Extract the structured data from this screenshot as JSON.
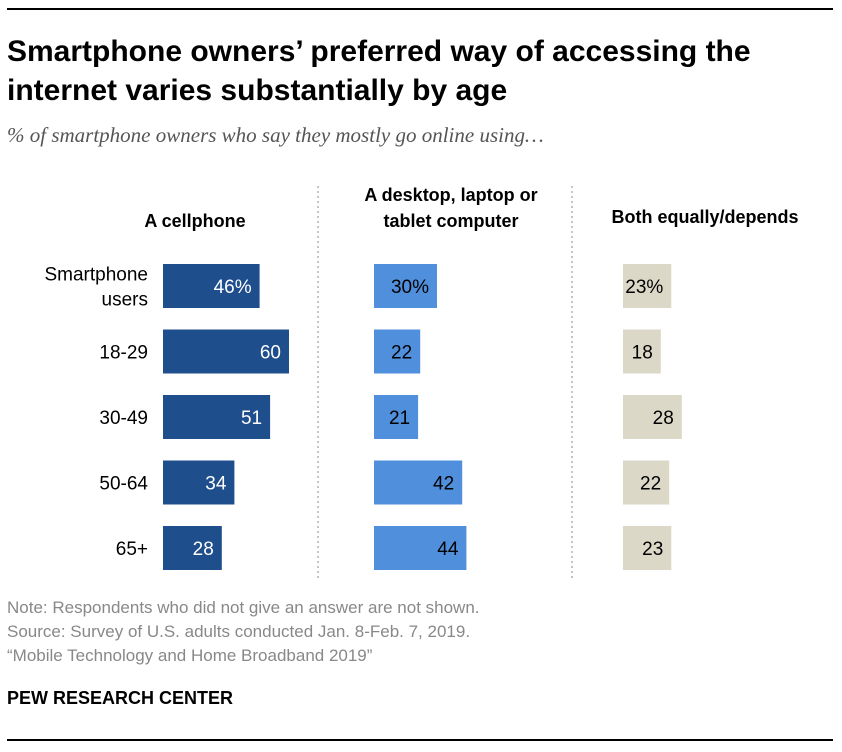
{
  "title": "Smartphone owners’ preferred way of accessing the internet varies substantially by age",
  "subtitle": "% of smartphone owners who say they mostly go online using…",
  "chart_data": {
    "type": "bar",
    "orientation": "horizontal",
    "categories": [
      "Smartphone users",
      "18-29",
      "30-49",
      "50-64",
      "65+"
    ],
    "category_lines": [
      [
        "Smartphone",
        "users"
      ],
      [
        "18-29"
      ],
      [
        "30-49"
      ],
      [
        "50-64"
      ],
      [
        "65+"
      ]
    ],
    "series": [
      {
        "name": "A cellphone",
        "name_lines": [
          "A cellphone"
        ],
        "color": "#1f4e8c",
        "label_color": "#ffffff",
        "value_labels": [
          "46%",
          "60",
          "51",
          "34",
          "28"
        ],
        "values": [
          46,
          60,
          51,
          34,
          28
        ]
      },
      {
        "name": "A desktop, laptop or tablet computer",
        "name_lines": [
          "A desktop, laptop or",
          "tablet computer"
        ],
        "color": "#4f8fdc",
        "label_color": "#000000",
        "value_labels": [
          "30%",
          "22",
          "21",
          "42",
          "44"
        ],
        "values": [
          30,
          22,
          21,
          42,
          44
        ]
      },
      {
        "name": "Both equally/depends",
        "name_lines": [
          "Both equally/depends"
        ],
        "color": "#dbd8c8",
        "label_color": "#000000",
        "value_labels": [
          "23%",
          "18",
          "28",
          "22",
          "23"
        ],
        "values": [
          23,
          18,
          28,
          22,
          23
        ]
      }
    ]
  },
  "notes": [
    "Note: Respondents who did not give an answer are not shown.",
    "Source: Survey of U.S. adults conducted Jan. 8-Feb. 7, 2019.",
    "“Mobile Technology and Home Broadband 2019”"
  ],
  "brand": "PEW RESEARCH CENTER"
}
